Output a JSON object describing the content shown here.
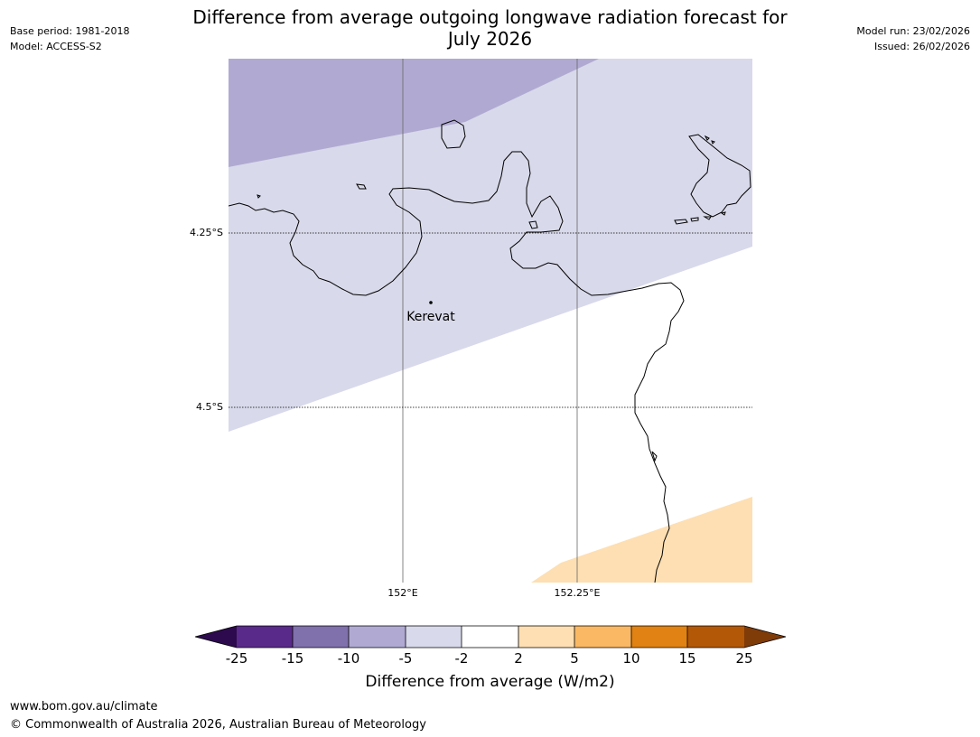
{
  "header": {
    "base_period": "Base period: 1981-2018",
    "model": "Model: ACCESS-S2",
    "title_line1": "Difference from average outgoing longwave radiation forecast for",
    "title_line2": "July 2026",
    "model_run": "Model run: 23/02/2026",
    "issued": "Issued: 26/02/2026"
  },
  "map": {
    "lat_labels": [
      "4.25°S",
      "4.5°S"
    ],
    "lon_labels": [
      "152°E",
      "152.25°E"
    ],
    "place": "Kerevat"
  },
  "colorbar": {
    "label": "Difference from average (W/m2)",
    "ticks": [
      "-25",
      "-15",
      "-10",
      "-5",
      "-2",
      "2",
      "5",
      "10",
      "15",
      "25"
    ],
    "colors": {
      "lt_neg25": "#2d0a4e",
      "neg25_neg15": "#5a2a8a",
      "neg15_neg10": "#8070ac",
      "neg10_neg5": "#b0aad2",
      "neg5_neg2": "#d8d9ea",
      "neg2_2": "#ffffff",
      "p2_p5": "#fddfb3",
      "p5_p10": "#fbb864",
      "p10_p15": "#e08214",
      "p15_p25": "#b35806",
      "gt_25": "#7f3b08"
    }
  },
  "footer": {
    "url": "www.bom.gov.au/climate",
    "copyright": "© Commonwealth of Australia 2026, Australian Bureau of Meteorology"
  }
}
